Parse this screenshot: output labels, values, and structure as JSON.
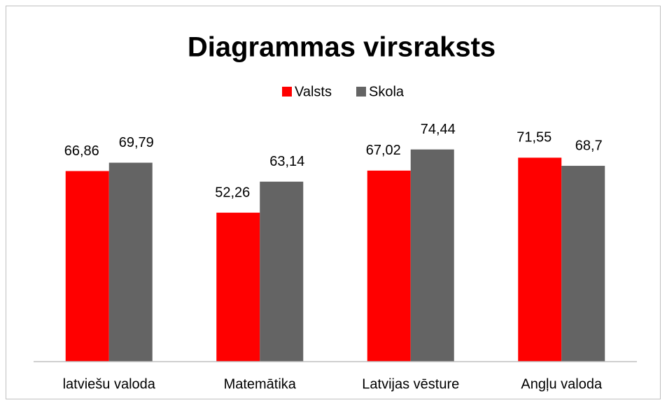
{
  "chart_data": {
    "type": "bar",
    "title": "Diagrammas virsraksts",
    "categories": [
      "latviešu valoda",
      "Matemātika",
      "Latvijas vēsture",
      "Angļu valoda"
    ],
    "series": [
      {
        "name": "Valsts",
        "color": "#ff0000",
        "values": [
          66.86,
          52.26,
          67.02,
          71.55
        ],
        "value_labels": [
          "66,86",
          "52,26",
          "67,02",
          "71,55"
        ]
      },
      {
        "name": "Skola",
        "color": "#646464",
        "values": [
          69.79,
          63.14,
          74.44,
          68.7
        ],
        "value_labels": [
          "69,79",
          "63,14",
          "74,44",
          "68,7"
        ]
      }
    ],
    "ylim": [
      0,
      80
    ],
    "legend": "top"
  }
}
